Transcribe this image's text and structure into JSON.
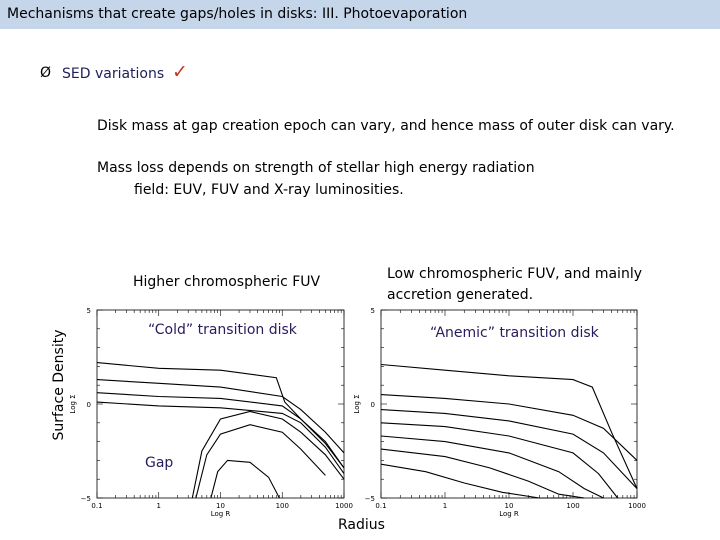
{
  "slide": {
    "title": "Mechanisms that create gaps/holes in disks:  III. Photoevaporation",
    "bullet_marker": "Ø",
    "bullet": "SED variations",
    "checkmark": "✓",
    "paragraph1": "Disk mass at gap creation epoch can vary, and hence mass of outer disk can vary.",
    "paragraph2_line1": "Mass loss depends on strength of stellar high energy radiation",
    "paragraph2_line2": "field: EUV, FUV and X-ray luminosities.",
    "left_heading": "Higher chromospheric FUV",
    "right_heading_line1": "Low chromospheric FUV, and mainly",
    "right_heading_line2": "accretion generated.",
    "label_cold": "“Cold” transition disk",
    "label_anemic": "“Anemic” transition disk",
    "label_gap": "Gap",
    "label_surface_density": "Surface Density",
    "label_radius": "Radius",
    "accent_color": "#c0392b",
    "title_bar_color": "#c5d5ea"
  },
  "chart_data": [
    {
      "type": "line",
      "panel": "left",
      "xlabel": "Log R",
      "ylabel": "Log Σ",
      "x_scale": "log",
      "x_ticks": [
        "0.1",
        "1",
        "10",
        "100",
        "1000"
      ],
      "y_ticks": [
        "5",
        "0",
        "−5"
      ],
      "xlim": [
        0.1,
        1000
      ],
      "ylim": [
        -5,
        5
      ],
      "series": [
        {
          "x": [
            0.1,
            1,
            10,
            80,
            110,
            200,
            500,
            1000
          ],
          "y": [
            2.2,
            1.9,
            1.8,
            1.4,
            0.1,
            -0.8,
            -2.0,
            -3.4
          ]
        },
        {
          "x": [
            0.1,
            1,
            10,
            100,
            200,
            500,
            1000
          ],
          "y": [
            1.3,
            1.1,
            0.9,
            0.4,
            -0.3,
            -1.5,
            -2.6
          ]
        },
        {
          "x": [
            0.1,
            1,
            10,
            100,
            200,
            500,
            1000
          ],
          "y": [
            0.6,
            0.4,
            0.3,
            -0.1,
            -0.8,
            -2.1,
            -3.4
          ]
        },
        {
          "x": [
            0.1,
            1,
            10,
            100,
            200,
            500,
            1000
          ],
          "y": [
            0.1,
            -0.1,
            -0.2,
            -0.5,
            -1.0,
            -2.3,
            -3.7
          ]
        },
        {
          "x": [
            3.5,
            5,
            10,
            30,
            100,
            200,
            500,
            1000
          ],
          "y": [
            -5.1,
            -2.5,
            -0.8,
            -0.4,
            -0.8,
            -1.5,
            -2.7,
            -4.0
          ]
        },
        {
          "x": [
            4,
            6,
            10,
            30,
            100,
            200,
            500
          ],
          "y": [
            -5.1,
            -2.7,
            -1.6,
            -1.1,
            -1.5,
            -2.4,
            -3.8
          ]
        },
        {
          "x": [
            7,
            9,
            13,
            30,
            60,
            90
          ],
          "y": [
            -5.1,
            -3.6,
            -3.0,
            -3.1,
            -3.9,
            -5.1
          ]
        }
      ]
    },
    {
      "type": "line",
      "panel": "right",
      "xlabel": "Log R",
      "ylabel": "Log Σ",
      "x_scale": "log",
      "x_ticks": [
        "0.1",
        "1",
        "10",
        "100",
        "1000"
      ],
      "y_ticks": [
        "5",
        "0",
        "−5"
      ],
      "xlim": [
        0.1,
        1000
      ],
      "ylim": [
        -5,
        5
      ],
      "series": [
        {
          "x": [
            0.1,
            1,
            10,
            100,
            200,
            400,
            1000
          ],
          "y": [
            2.1,
            1.8,
            1.5,
            1.3,
            0.9,
            -1.5,
            -4.5
          ]
        },
        {
          "x": [
            0.1,
            1,
            10,
            100,
            300,
            1000
          ],
          "y": [
            0.5,
            0.3,
            0.0,
            -0.6,
            -1.3,
            -3.0
          ]
        },
        {
          "x": [
            0.1,
            1,
            10,
            100,
            300,
            1000
          ],
          "y": [
            -0.3,
            -0.5,
            -0.9,
            -1.6,
            -2.6,
            -4.5
          ]
        },
        {
          "x": [
            0.1,
            1,
            10,
            100,
            250,
            500
          ],
          "y": [
            -1.0,
            -1.2,
            -1.7,
            -2.6,
            -3.7,
            -5.0
          ]
        },
        {
          "x": [
            0.1,
            1,
            10,
            60,
            150,
            300
          ],
          "y": [
            -1.7,
            -2.0,
            -2.6,
            -3.6,
            -4.5,
            -5.0
          ]
        },
        {
          "x": [
            0.1,
            1,
            5,
            20,
            60,
            150
          ],
          "y": [
            -2.4,
            -2.8,
            -3.4,
            -4.1,
            -4.8,
            -5.0
          ]
        },
        {
          "x": [
            0.1,
            0.5,
            2,
            8,
            30,
            80
          ],
          "y": [
            -3.2,
            -3.6,
            -4.2,
            -4.7,
            -5.0,
            -5.0
          ]
        }
      ]
    }
  ]
}
